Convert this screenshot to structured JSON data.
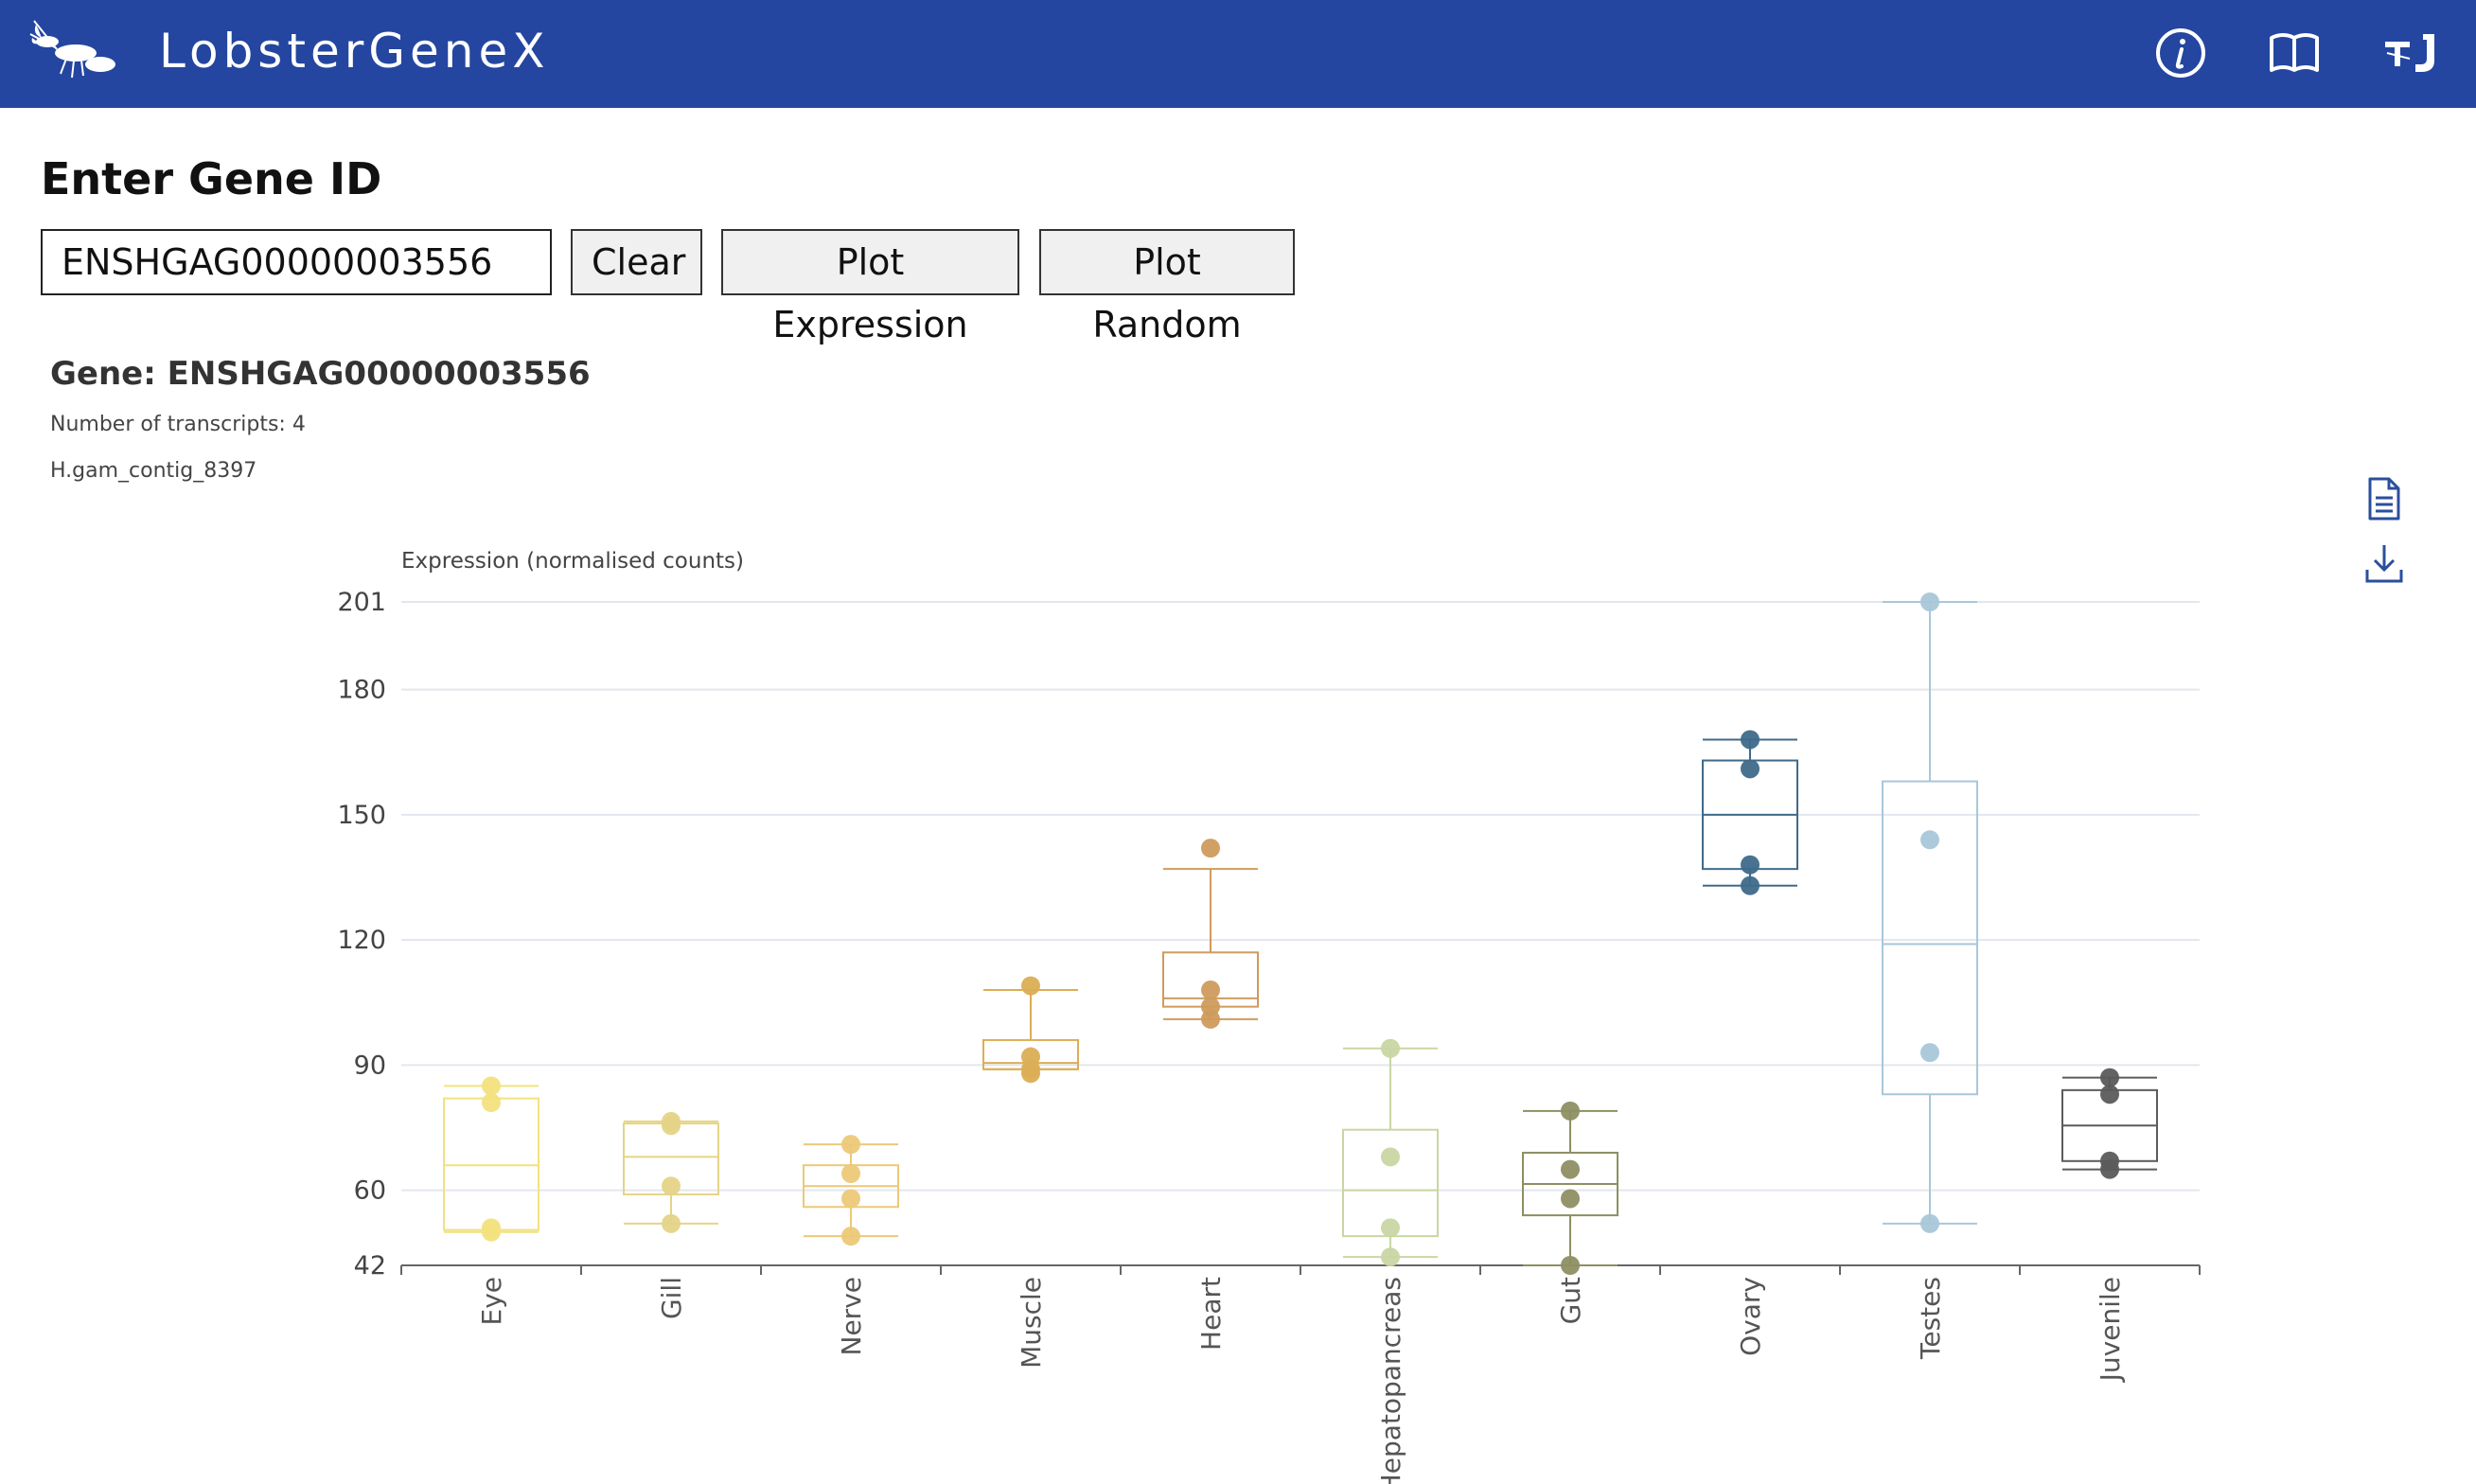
{
  "header": {
    "app_title": "LobsterGeneX",
    "brand_color": "#2446a0",
    "logo_icon": "lobster-logo",
    "nav_icons": [
      "info-icon",
      "book-icon",
      "institution-logo-icon"
    ]
  },
  "search": {
    "heading": "Enter Gene ID",
    "input_value": "ENSHGAG00000003556",
    "clear_label": "Clear",
    "plot_label": "Plot Expression",
    "random_label": "Plot Random"
  },
  "gene": {
    "heading": "Gene: ENSHGAG00000003556",
    "transcripts": "Number of transcripts: 4",
    "contig": "H.gam_contig_8397"
  },
  "export_icons": [
    "document-icon",
    "download-icon"
  ],
  "chart_data": {
    "type": "box",
    "ylabel": "Expression (normalised counts)",
    "ylim": [
      42,
      201
    ],
    "yticks": [
      42,
      60,
      90,
      120,
      150,
      180,
      201
    ],
    "grid": true,
    "categories": [
      "Eye",
      "Gill",
      "Nerve",
      "Muscle",
      "Heart",
      "Hepatopancreas",
      "Gut",
      "Ovary",
      "Testes",
      "Juvenile"
    ],
    "series": [
      {
        "category": "Eye",
        "color": "#f2e27e",
        "min": 50,
        "q1": 50.5,
        "median": 66,
        "q3": 82,
        "max": 85,
        "points": [
          85,
          81,
          51,
          50
        ]
      },
      {
        "category": "Gill",
        "color": "#e5d487",
        "min": 52,
        "q1": 59,
        "median": 68,
        "q3": 76,
        "max": 76.5,
        "points": [
          76.5,
          75.5,
          61,
          52
        ]
      },
      {
        "category": "Nerve",
        "color": "#ecc978",
        "min": 49,
        "q1": 56,
        "median": 61,
        "q3": 66,
        "max": 71,
        "points": [
          71,
          64,
          58,
          49
        ]
      },
      {
        "category": "Muscle",
        "color": "#dbae55",
        "min": 89,
        "q1": 89,
        "median": 90.5,
        "q3": 96,
        "max": 108,
        "points": [
          109,
          92,
          89,
          88
        ]
      },
      {
        "category": "Heart",
        "color": "#cf9b5d",
        "min": 101,
        "q1": 104,
        "median": 106,
        "q3": 117,
        "max": 137,
        "points": [
          142,
          108,
          104,
          101
        ]
      },
      {
        "category": "Hepatopancreas",
        "color": "#c9d6a3",
        "min": 44,
        "q1": 49,
        "median": 60,
        "q3": 74.5,
        "max": 94,
        "points": [
          94,
          68,
          51,
          44
        ]
      },
      {
        "category": "Gut",
        "color": "#8e8f62",
        "min": 42,
        "q1": 54,
        "median": 61.5,
        "q3": 69,
        "max": 79,
        "points": [
          79,
          65,
          58,
          42
        ]
      },
      {
        "category": "Ovary",
        "color": "#3f6a8a",
        "min": 133,
        "q1": 137,
        "median": 150,
        "q3": 163,
        "max": 168,
        "points": [
          168,
          161,
          138,
          133
        ]
      },
      {
        "category": "Testes",
        "color": "#a9c7d9",
        "min": 52,
        "q1": 83,
        "median": 119,
        "q3": 158,
        "max": 201,
        "points": [
          201,
          144,
          93,
          52
        ]
      },
      {
        "category": "Juvenile",
        "color": "#5b5b5b",
        "min": 65,
        "q1": 67,
        "median": 75.5,
        "q3": 84,
        "max": 87,
        "points": [
          87,
          83,
          67,
          65
        ]
      }
    ]
  }
}
